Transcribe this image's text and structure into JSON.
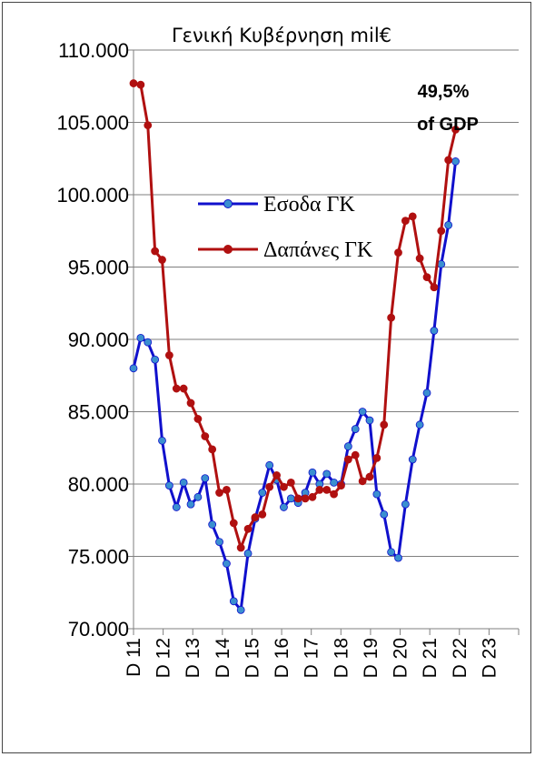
{
  "chart_data": {
    "type": "line",
    "title": "Γενική Κυβέρνηση mil€",
    "xlabel": "",
    "ylabel": "",
    "ylim": [
      70000,
      110000
    ],
    "yticks": [
      70000,
      75000,
      80000,
      85000,
      90000,
      95000,
      100000,
      105000,
      110000
    ],
    "ytick_labels": [
      "70.000",
      "75.000",
      "80.000",
      "85.000",
      "90.000",
      "95.000",
      "100.000",
      "105.000",
      "110.000"
    ],
    "xtick_labels": [
      "D 11",
      "D 12",
      "D 13",
      "D 14",
      "D 15",
      "D 16",
      "D 17",
      "D 18",
      "D 19",
      "D 20",
      "D 21",
      "D 22",
      "D 23"
    ],
    "legend_position": "center-left",
    "annotation": [
      "49,5%",
      "of GDP"
    ],
    "series": [
      {
        "name": "Εσοδα ΓΚ",
        "color": "#1010CC",
        "marker_color": "#3A8FD0",
        "values": [
          88000,
          90100,
          89800,
          88600,
          83000,
          79900,
          78400,
          80100,
          78600,
          79100,
          80400,
          77200,
          76000,
          74500,
          71900,
          71300,
          75200,
          77600,
          79400,
          81300,
          80300,
          78400,
          79000,
          78700,
          79400,
          80800,
          80000,
          80700,
          80100,
          80000,
          82600,
          83800,
          85000,
          84400,
          79300,
          77900,
          75300,
          74900,
          78600,
          81700,
          84100,
          86300,
          90600,
          95200,
          97900,
          102300
        ]
      },
      {
        "name": "Δαπάνες ΓΚ",
        "color": "#B01010",
        "marker_color": "#B01010",
        "values": [
          107700,
          107600,
          104800,
          96100,
          95500,
          88900,
          86600,
          86600,
          85600,
          84500,
          83300,
          82400,
          79400,
          79600,
          77300,
          75600,
          76900,
          77700,
          77900,
          79800,
          80600,
          79800,
          80100,
          79000,
          79000,
          79100,
          79600,
          79600,
          79300,
          79900,
          81700,
          82000,
          80200,
          80500,
          81800,
          84100,
          91500,
          96000,
          98200,
          98500,
          95600,
          94300,
          93600,
          97500,
          102400,
          104500
        ]
      }
    ]
  }
}
